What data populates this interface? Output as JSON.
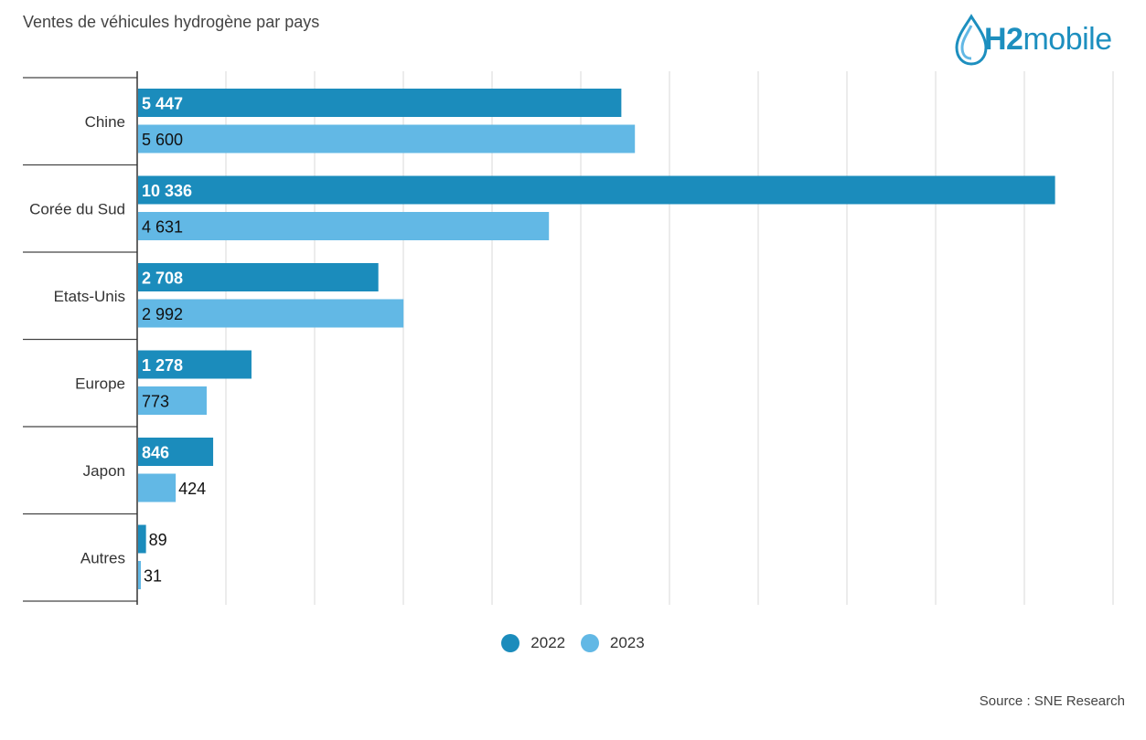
{
  "header": {
    "title": "Ventes de véhicules hydrogène par pays",
    "logo_text_bold": "H2",
    "logo_text": "mobile"
  },
  "colors": {
    "series_2022": "#1b8cbc",
    "series_2023": "#62b8e5",
    "text": "#333333",
    "grid": "#d9d9d9"
  },
  "chart_data": {
    "type": "bar",
    "orientation": "horizontal",
    "title": "Ventes de véhicules hydrogène par pays",
    "categories": [
      "Chine",
      "Corée du Sud",
      "Etats-Unis",
      "Europe",
      "Japon",
      "Autres"
    ],
    "series": [
      {
        "name": "2022",
        "values": [
          5447,
          10336,
          2708,
          1278,
          846,
          89
        ],
        "labels": [
          "5 447",
          "10 336",
          "2 708",
          "1 278",
          "846",
          "89"
        ]
      },
      {
        "name": "2023",
        "values": [
          5600,
          4631,
          2992,
          773,
          424,
          31
        ],
        "labels": [
          "5 600",
          "4 631",
          "2 992",
          "773",
          "424",
          "31"
        ]
      }
    ],
    "xlim": [
      0,
      11000
    ],
    "grid": true,
    "legend_position": "bottom"
  },
  "footer": {
    "source": "Source : SNE Research"
  }
}
